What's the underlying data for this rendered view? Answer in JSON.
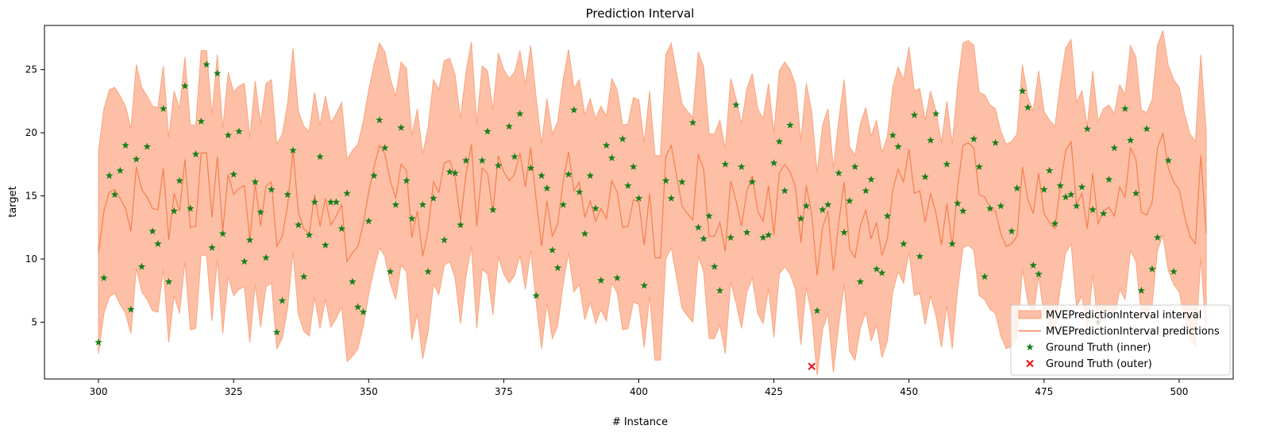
{
  "chart_data": {
    "type": "area",
    "title": "Prediction Interval",
    "xlabel": "# Instance",
    "ylabel": "target",
    "xlim": [
      290,
      510
    ],
    "ylim": [
      0.5,
      28.5
    ],
    "x_ticks": [
      300,
      325,
      350,
      375,
      400,
      425,
      450,
      475,
      500
    ],
    "y_ticks": [
      5,
      10,
      15,
      20,
      25
    ],
    "x_start": 300,
    "grid": false,
    "legend_position": "bottom-right",
    "legend": [
      {
        "label": "MVEPredictionInterval interval",
        "kind": "patch"
      },
      {
        "label": "MVEPredictionInterval predictions",
        "kind": "line"
      },
      {
        "label": "Ground Truth (inner)",
        "kind": "star"
      },
      {
        "label": "Ground Truth (outer)",
        "kind": "cross"
      }
    ],
    "colors": {
      "interval_fill": "#fdbfa5",
      "interval_edge": "#f9a57f",
      "prediction_line": "#f47f4e",
      "inner_marker": "#1a7f1a",
      "outer_marker": "#e8141b",
      "axes": "#000000"
    },
    "series": [
      {
        "name": "MVEPredictionInterval predictions",
        "values": [
          10.5,
          13.8,
          15.3,
          15.5,
          14.8,
          14.0,
          12.2,
          17.3,
          15.5,
          14.9,
          14.0,
          13.9,
          17.2,
          11.5,
          15.2,
          13.8,
          17.9,
          12.5,
          12.6,
          18.4,
          18.4,
          13.3,
          18.1,
          12.2,
          16.7,
          15.1,
          15.6,
          15.8,
          11.5,
          16.0,
          12.6,
          15.8,
          16.1,
          11.0,
          11.8,
          14.2,
          18.6,
          13.7,
          12.4,
          12.0,
          15.1,
          12.6,
          14.8,
          12.7,
          13.4,
          14.3,
          9.8,
          10.5,
          11.0,
          12.8,
          15.3,
          17.3,
          19.0,
          18.3,
          16.2,
          14.8,
          17.5,
          17.0,
          11.7,
          13.8,
          10.2,
          12.3,
          16.1,
          15.3,
          17.6,
          17.8,
          16.5,
          13.0,
          16.7,
          19.1,
          12.6,
          17.2,
          16.8,
          13.7,
          18.2,
          16.9,
          16.2,
          16.7,
          18.4,
          15.7,
          18.8,
          14.7,
          11.0,
          14.6,
          11.8,
          12.8,
          16.1,
          18.5,
          15.4,
          16.1,
          13.3,
          14.6,
          13.0,
          14.0,
          13.2,
          16.2,
          15.3,
          12.5,
          12.6,
          14.7,
          14.5,
          11.1,
          15.2,
          10.1,
          10.1,
          18.1,
          19.0,
          16.6,
          14.2,
          13.6,
          13.1,
          18.3,
          17.1,
          11.8,
          11.8,
          12.9,
          10.6,
          16.2,
          14.6,
          12.6,
          15.4,
          16.6,
          13.8,
          13.0,
          15.8,
          11.9,
          16.8,
          17.5,
          16.9,
          15.7,
          11.3,
          15.8,
          13.6,
          8.7,
          12.5,
          13.8,
          9.1,
          12.9,
          16.1,
          10.8,
          10.1,
          12.6,
          13.9,
          11.6,
          12.9,
          10.3,
          11.6,
          15.5,
          17.1,
          16.1,
          18.7,
          15.2,
          15.4,
          12.9,
          15.2,
          13.6,
          11.1,
          14.4,
          11.0,
          15.7,
          19.0,
          19.2,
          18.8,
          15.1,
          14.9,
          14.1,
          13.8,
          12.0,
          11.0,
          11.2,
          11.8,
          17.3,
          14.7,
          13.6,
          16.8,
          13.6,
          12.9,
          12.4,
          15.8,
          18.6,
          19.3,
          14.3,
          15.2,
          12.4,
          16.8,
          12.8,
          13.8,
          14.1,
          13.4,
          15.7,
          14.9,
          18.8,
          17.9,
          13.7,
          13.5,
          14.5,
          18.8,
          20.0,
          17.2,
          16.1,
          15.5,
          13.4,
          11.8,
          11.2,
          18.2,
          12.0
        ]
      },
      {
        "name": "interval_lower",
        "values": [
          2.5,
          5.7,
          7.0,
          7.3,
          6.4,
          5.7,
          4.1,
          9.3,
          7.4,
          6.8,
          5.9,
          5.8,
          9.2,
          3.4,
          7.1,
          5.7,
          9.8,
          4.4,
          4.5,
          10.3,
          10.3,
          5.1,
          10.0,
          4.1,
          8.6,
          7.1,
          7.6,
          7.8,
          3.4,
          8.0,
          4.6,
          7.8,
          8.1,
          2.9,
          3.7,
          6.1,
          10.6,
          5.6,
          4.3,
          3.9,
          7.0,
          4.5,
          6.8,
          4.6,
          5.3,
          6.2,
          1.9,
          2.3,
          2.9,
          4.7,
          7.2,
          9.2,
          10.9,
          10.2,
          8.1,
          6.8,
          9.5,
          9.0,
          3.6,
          5.7,
          2.1,
          4.2,
          8.0,
          7.2,
          9.5,
          9.8,
          8.5,
          4.9,
          8.6,
          11.0,
          4.5,
          9.2,
          8.8,
          5.6,
          10.2,
          8.8,
          8.1,
          8.7,
          10.3,
          7.6,
          10.7,
          6.6,
          2.9,
          6.5,
          3.7,
          4.7,
          8.0,
          10.5,
          7.4,
          8.0,
          5.2,
          6.6,
          4.9,
          6.0,
          5.1,
          8.1,
          7.3,
          4.4,
          4.5,
          6.6,
          6.4,
          3.0,
          7.1,
          2.0,
          2.0,
          10.0,
          10.9,
          8.5,
          6.1,
          5.5,
          5.0,
          10.2,
          9.0,
          3.7,
          3.7,
          4.8,
          2.5,
          8.2,
          6.5,
          4.5,
          7.4,
          8.5,
          5.7,
          4.9,
          7.7,
          3.8,
          8.8,
          9.4,
          8.8,
          7.6,
          3.2,
          7.8,
          5.5,
          0.8,
          4.4,
          5.7,
          1.0,
          4.8,
          8.0,
          2.7,
          2.0,
          4.5,
          5.8,
          3.5,
          4.8,
          2.2,
          3.5,
          7.4,
          9.0,
          8.1,
          10.6,
          7.1,
          7.3,
          4.8,
          7.1,
          5.5,
          3.0,
          6.3,
          2.9,
          7.6,
          10.9,
          11.1,
          10.7,
          7.1,
          6.8,
          6.0,
          5.7,
          3.9,
          2.9,
          3.1,
          3.7,
          9.2,
          6.6,
          5.5,
          8.7,
          5.5,
          4.8,
          4.3,
          7.7,
          10.5,
          11.2,
          6.2,
          7.1,
          4.3,
          8.8,
          4.7,
          5.7,
          6.0,
          5.3,
          7.6,
          6.8,
          10.7,
          9.8,
          5.6,
          5.4,
          6.4,
          10.7,
          11.9,
          9.1,
          8.0,
          7.4,
          5.3,
          3.7,
          3.1,
          10.1,
          3.9
        ]
      },
      {
        "name": "interval_upper",
        "values": [
          18.5,
          21.9,
          23.4,
          23.6,
          22.9,
          22.1,
          20.3,
          25.4,
          23.6,
          22.9,
          22.1,
          22.0,
          25.3,
          19.6,
          23.3,
          21.9,
          26.0,
          20.6,
          20.6,
          26.5,
          26.5,
          21.4,
          26.2,
          20.3,
          24.8,
          23.2,
          23.7,
          23.9,
          19.6,
          24.1,
          20.7,
          23.9,
          24.2,
          19.1,
          19.9,
          22.3,
          26.7,
          21.7,
          20.5,
          20.1,
          23.2,
          20.6,
          22.9,
          20.8,
          21.5,
          22.4,
          17.9,
          18.6,
          19.1,
          20.9,
          23.4,
          25.4,
          27.1,
          26.4,
          24.3,
          22.9,
          25.6,
          25.1,
          19.8,
          21.9,
          18.3,
          20.4,
          24.2,
          23.4,
          25.7,
          25.9,
          24.6,
          21.1,
          24.8,
          27.2,
          20.7,
          25.3,
          24.9,
          21.8,
          26.3,
          25.0,
          24.3,
          24.8,
          26.5,
          23.8,
          26.9,
          22.8,
          19.1,
          22.7,
          19.9,
          20.9,
          24.2,
          26.6,
          23.5,
          24.2,
          21.4,
          22.7,
          21.1,
          22.1,
          21.3,
          24.3,
          23.4,
          20.6,
          20.7,
          22.8,
          22.6,
          19.2,
          23.3,
          18.2,
          18.2,
          26.2,
          27.1,
          24.7,
          22.3,
          21.7,
          21.2,
          26.4,
          25.2,
          19.9,
          19.9,
          21.0,
          18.7,
          24.3,
          22.7,
          20.7,
          23.5,
          24.7,
          21.9,
          21.1,
          23.9,
          20.0,
          24.9,
          25.6,
          25.0,
          23.8,
          19.4,
          23.9,
          21.7,
          16.8,
          20.6,
          21.9,
          17.2,
          21.0,
          24.2,
          18.9,
          18.2,
          20.7,
          22.0,
          19.7,
          21.0,
          18.4,
          19.7,
          23.6,
          25.2,
          24.2,
          26.8,
          23.3,
          23.5,
          21.0,
          23.3,
          21.7,
          19.2,
          22.5,
          19.1,
          23.8,
          27.1,
          27.3,
          26.9,
          23.2,
          23.0,
          22.2,
          21.9,
          20.1,
          19.1,
          19.3,
          19.9,
          25.4,
          22.8,
          21.7,
          24.9,
          21.7,
          21.0,
          20.5,
          23.9,
          26.7,
          27.4,
          22.4,
          23.3,
          20.5,
          24.9,
          20.9,
          21.9,
          22.2,
          21.5,
          23.8,
          23.0,
          26.9,
          26.0,
          21.8,
          21.6,
          22.6,
          26.9,
          28.1,
          25.3,
          24.2,
          23.6,
          21.5,
          19.9,
          19.3,
          26.2,
          20.1
        ]
      },
      {
        "name": "Ground Truth (inner)",
        "values": [
          3.4,
          8.5,
          16.6,
          15.1,
          17.0,
          19.0,
          6.0,
          17.9,
          9.4,
          18.9,
          12.2,
          11.2,
          21.9,
          8.2,
          13.8,
          16.2,
          23.7,
          14.0,
          18.3,
          20.9,
          25.4,
          10.9,
          24.7,
          12.0,
          19.8,
          16.7,
          20.1,
          9.8,
          11.5,
          16.1,
          13.7,
          10.1,
          15.5,
          4.2,
          6.7,
          15.1,
          18.6,
          12.7,
          8.6,
          11.9,
          14.5,
          18.1,
          11.1,
          14.5,
          14.5,
          12.4,
          15.2,
          8.2,
          6.2,
          5.8,
          13.0,
          16.6,
          21.0,
          18.8,
          9.0,
          14.3,
          20.4,
          16.2,
          13.2,
          4.0,
          14.3,
          9.0,
          14.8,
          23.8,
          11.5,
          16.9,
          16.8,
          12.7,
          17.8,
          8.5,
          21.0,
          17.8,
          20.1,
          13.9,
          17.4,
          5.8,
          20.5,
          18.1,
          21.5,
          23.9,
          17.2,
          7.1,
          16.6,
          15.6,
          10.7,
          9.3,
          14.3,
          16.7,
          21.8,
          15.3,
          12.0,
          16.6,
          14.0,
          8.3,
          19.0,
          18.0,
          8.5,
          19.5,
          15.8,
          17.3,
          14.8,
          7.9,
          5.1,
          21.0,
          20.2,
          16.2,
          14.8,
          7.2,
          16.1,
          23.4,
          20.8,
          12.5,
          11.6,
          13.4,
          9.4,
          7.5,
          17.5,
          11.7,
          22.2,
          17.3,
          12.1,
          16.1,
          24.0,
          11.7,
          11.9,
          17.6,
          19.3,
          15.4,
          20.6,
          6.6,
          13.2,
          14.2,
          1.5,
          5.9,
          13.9,
          14.3,
          22.8,
          16.8,
          12.1,
          14.6,
          17.3,
          8.2,
          15.4,
          16.3,
          9.2,
          8.9,
          13.4,
          19.8,
          18.9,
          11.2,
          8.9,
          21.4,
          10.2,
          16.5,
          19.4,
          21.5,
          22.6,
          17.5,
          11.2,
          14.4,
          13.8,
          8.8,
          19.5,
          17.3,
          8.6,
          14.0,
          19.2,
          14.2,
          2.7,
          12.2,
          15.6,
          23.3,
          22.0,
          9.5,
          8.8,
          15.5,
          17.0,
          12.8,
          15.8,
          14.9,
          15.1,
          14.2,
          15.7,
          20.3,
          13.9,
          5.0,
          13.6,
          16.3,
          18.8,
          25.0,
          21.9,
          19.4,
          15.2,
          7.5,
          20.3,
          9.2,
          11.7,
          8.3,
          17.8,
          9.0
        ]
      }
    ],
    "outer_points": [
      {
        "x": 432,
        "y": 1.5
      }
    ]
  }
}
